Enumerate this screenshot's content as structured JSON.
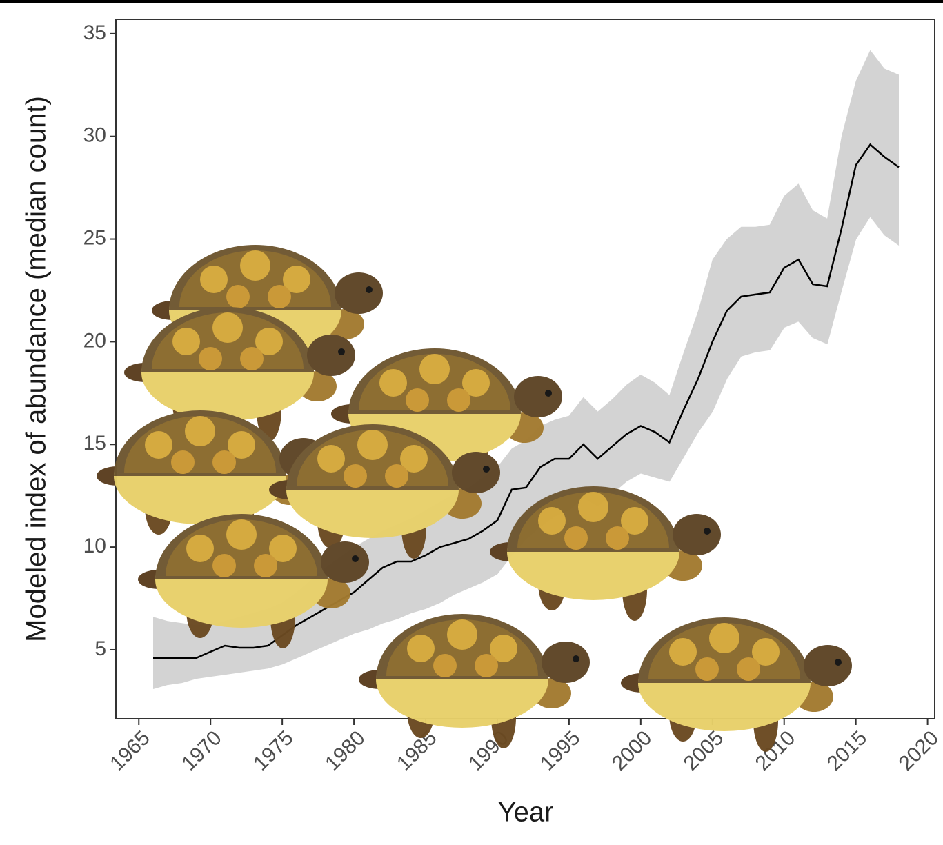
{
  "chart_data": {
    "type": "line",
    "x_label": "Year",
    "y_label": "Modeled index of abundance (median count)",
    "x": [
      1966,
      1967,
      1968,
      1969,
      1970,
      1971,
      1972,
      1973,
      1974,
      1975,
      1976,
      1977,
      1978,
      1979,
      1980,
      1981,
      1982,
      1983,
      1984,
      1985,
      1986,
      1987,
      1988,
      1989,
      1990,
      1991,
      1992,
      1993,
      1994,
      1995,
      1996,
      1997,
      1998,
      1999,
      2000,
      2001,
      2002,
      2003,
      2004,
      2005,
      2006,
      2007,
      2008,
      2009,
      2010,
      2011,
      2012,
      2013,
      2014,
      2015,
      2016,
      2017,
      2018
    ],
    "values": [
      4.6,
      4.6,
      4.6,
      4.6,
      4.9,
      5.2,
      5.1,
      5.1,
      5.2,
      5.7,
      6.2,
      6.6,
      7.0,
      7.4,
      7.8,
      8.4,
      9.0,
      9.3,
      9.3,
      9.6,
      10.0,
      10.2,
      10.4,
      10.8,
      11.3,
      12.8,
      12.9,
      13.9,
      14.3,
      14.3,
      15.0,
      14.3,
      14.9,
      15.5,
      15.9,
      15.6,
      15.1,
      16.7,
      18.2,
      20.0,
      21.5,
      22.2,
      22.3,
      22.4,
      23.6,
      24.0,
      22.8,
      22.7,
      25.5,
      28.6,
      29.6,
      29.0,
      28.5
    ],
    "upper": [
      6.6,
      6.4,
      6.3,
      6.2,
      6.2,
      6.4,
      6.6,
      6.8,
      7.0,
      7.3,
      7.8,
      8.4,
      9.0,
      9.5,
      10.0,
      10.4,
      10.8,
      11.1,
      11.4,
      11.8,
      12.2,
      12.6,
      12.9,
      13.4,
      13.9,
      14.8,
      15.2,
      15.9,
      16.2,
      16.4,
      17.3,
      16.6,
      17.2,
      17.9,
      18.4,
      18.0,
      17.4,
      19.5,
      21.5,
      24.0,
      25.0,
      25.6,
      25.6,
      25.7,
      27.1,
      27.7,
      26.4,
      26.0,
      30.0,
      32.7,
      34.2,
      33.3,
      33.0
    ],
    "lower": [
      3.1,
      3.3,
      3.4,
      3.6,
      3.7,
      3.8,
      3.9,
      4.0,
      4.1,
      4.3,
      4.6,
      4.9,
      5.2,
      5.5,
      5.8,
      6.0,
      6.3,
      6.5,
      6.8,
      7.0,
      7.3,
      7.7,
      8.0,
      8.3,
      8.7,
      9.6,
      10.4,
      11.0,
      11.5,
      11.8,
      12.4,
      12.0,
      12.6,
      13.2,
      13.6,
      13.4,
      13.2,
      14.4,
      15.6,
      16.6,
      18.2,
      19.3,
      19.5,
      19.6,
      20.7,
      21.0,
      20.2,
      19.9,
      22.5,
      25.0,
      26.1,
      25.2,
      24.7
    ],
    "line_color": "#000000",
    "band_color": "#d3d3d3",
    "xlim": [
      1963.4,
      2020.5
    ],
    "ylim": [
      1.64,
      35.7
    ],
    "xticks": [
      1965,
      1970,
      1975,
      1980,
      1985,
      1990,
      1995,
      2000,
      2005,
      2010,
      2015,
      2020
    ],
    "yticks": [
      5,
      10,
      15,
      20,
      25,
      30,
      35
    ],
    "grid": false
  }
}
